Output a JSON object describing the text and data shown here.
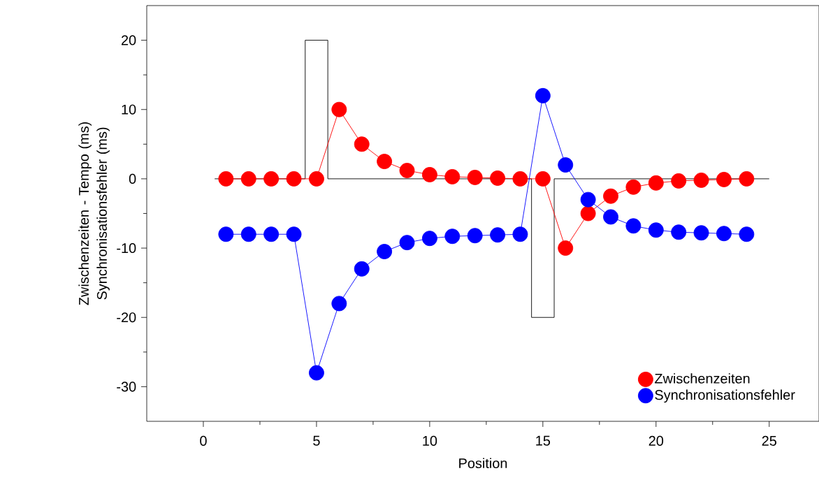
{
  "chart_data": {
    "type": "line",
    "xlabel": "Position",
    "ylabel": "Zwischenzeiten - Tempo (ms) Synchronisationsfehler (ms)",
    "xlim": [
      -2.5,
      27.2
    ],
    "ylim": [
      -35,
      25
    ],
    "xticks": [
      0,
      5,
      10,
      15,
      20,
      25
    ],
    "yticks": [
      -30,
      -20,
      -10,
      0,
      10,
      20
    ],
    "grid": false,
    "legend": "bottom right",
    "marker": "circle",
    "line_style": "solid",
    "series": [
      {
        "name": "Zwischenzeiten",
        "color": "#ff0000",
        "x": [
          1,
          2,
          3,
          4,
          5,
          6,
          7,
          8,
          9,
          10,
          11,
          12,
          13,
          14,
          15,
          16,
          17,
          18,
          19,
          20,
          21,
          22,
          23,
          24
        ],
        "values": [
          0,
          0,
          0,
          0,
          0,
          10,
          5,
          2.5,
          1.2,
          0.6,
          0.3,
          0.2,
          0.1,
          0,
          0,
          -10,
          -5,
          -2.5,
          -1.2,
          -0.6,
          -0.3,
          -0.2,
          -0.1,
          0
        ]
      },
      {
        "name": "Synchronisationsfehler",
        "color": "#0000ff",
        "x": [
          1,
          2,
          3,
          4,
          5,
          6,
          7,
          8,
          9,
          10,
          11,
          12,
          13,
          14,
          15,
          16,
          17,
          18,
          19,
          20,
          21,
          22,
          23,
          24
        ],
        "values": [
          -8,
          -8,
          -8,
          -8,
          -28,
          -18,
          -13,
          -10.5,
          -9.2,
          -8.6,
          -8.3,
          -8.2,
          -8.1,
          -8,
          12,
          2,
          -3,
          -5.5,
          -6.8,
          -7.4,
          -7.7,
          -7.8,
          -7.9,
          -8
        ]
      },
      {
        "type": "step",
        "color": "#000000",
        "marker": "none",
        "x": [
          0.5,
          4.5,
          5.5,
          14.5,
          15.5,
          25
        ],
        "values": [
          0,
          20,
          0,
          -20,
          0,
          0
        ]
      }
    ]
  }
}
